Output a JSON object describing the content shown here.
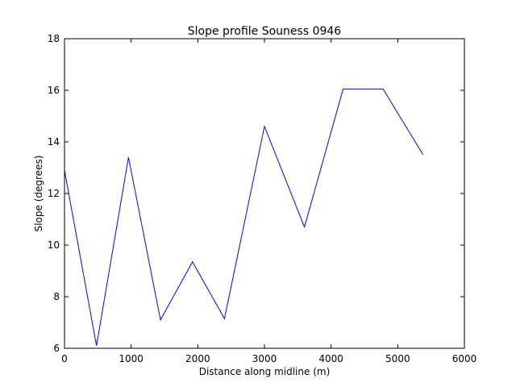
{
  "chart_data": {
    "type": "line",
    "title": "Slope profile Souness 0946",
    "xlabel": "Distance along midline (m)",
    "ylabel": "Slope (degrees)",
    "xlim": [
      0,
      6000
    ],
    "ylim": [
      6,
      18
    ],
    "xticks": [
      0,
      1000,
      2000,
      3000,
      4000,
      5000,
      6000
    ],
    "yticks": [
      6,
      8,
      10,
      12,
      14,
      16,
      18
    ],
    "grid": false,
    "series": [
      {
        "color": "#0000ff",
        "x": [
          0,
          480,
          960,
          1440,
          1920,
          2400,
          3000,
          3600,
          4180,
          4780,
          5380
        ],
        "y": [
          12.9,
          6.1,
          13.4,
          7.1,
          9.35,
          7.15,
          14.6,
          10.7,
          16.05,
          16.05,
          13.5
        ]
      }
    ]
  }
}
